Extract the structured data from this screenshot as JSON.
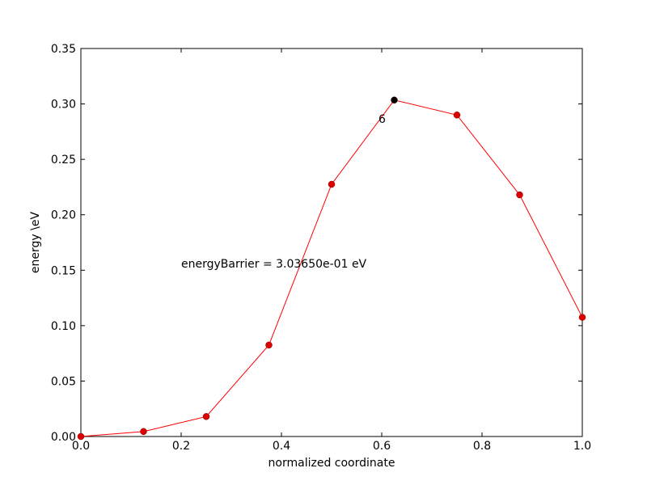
{
  "chart_data": {
    "type": "line",
    "xlabel": "normalized coordinate",
    "ylabel": "energy \\eV",
    "xlim": [
      0.0,
      1.0
    ],
    "ylim": [
      0.0,
      0.35
    ],
    "grid": false,
    "x_ticks": [
      "0.0",
      "0.2",
      "0.4",
      "0.6",
      "0.8",
      "1.0"
    ],
    "y_ticks": [
      "0.00",
      "0.05",
      "0.10",
      "0.15",
      "0.20",
      "0.25",
      "0.30",
      "0.35"
    ],
    "series": [
      {
        "color": "#ff0000",
        "marker_color": "#dd0000",
        "x": [
          0.0,
          0.125,
          0.25,
          0.375,
          0.5,
          0.625,
          0.75,
          0.875,
          1.0
        ],
        "y": [
          0.0,
          0.0045,
          0.018,
          0.0825,
          0.2275,
          0.3035,
          0.29,
          0.218,
          0.1075
        ]
      }
    ],
    "highlight_point": {
      "x": 0.625,
      "y": 0.3035,
      "color": "#000000",
      "label": "6"
    },
    "annotation": "energyBarrier =  3.03650e-01 eV"
  }
}
